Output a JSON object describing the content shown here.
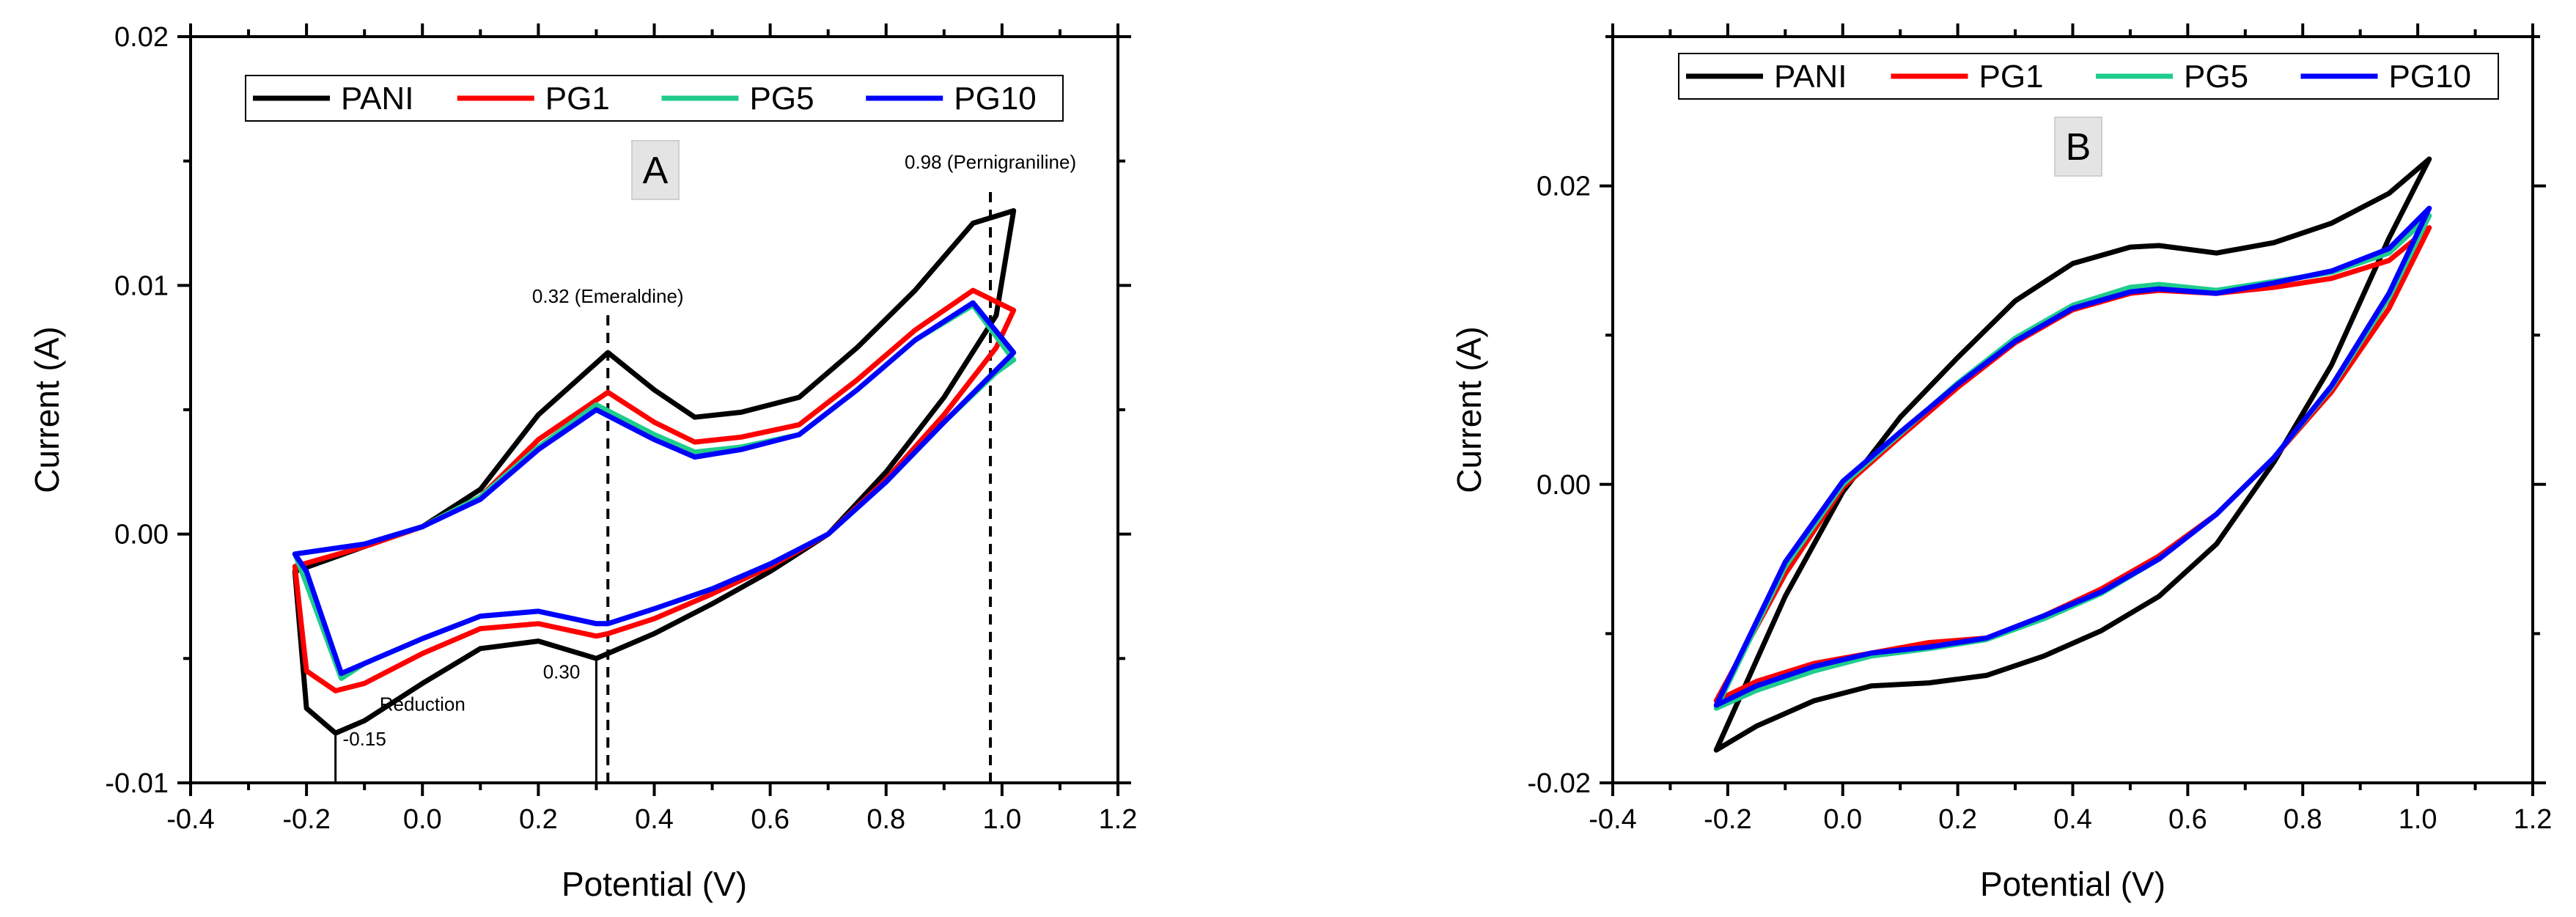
{
  "chart_data": [
    {
      "type": "line",
      "panel": "A",
      "xlabel": "Potential (V)",
      "ylabel": "Current (A)",
      "xlim": [
        -0.4,
        1.2
      ],
      "ylim": [
        -0.01,
        0.02
      ],
      "xticks": [
        "-0.4",
        "-0.2",
        "0.0",
        "0.2",
        "0.4",
        "0.6",
        "0.8",
        "1.0",
        "1.2"
      ],
      "yticks": [
        "-0.01",
        "0.00",
        "0.01",
        "0.02"
      ],
      "legend": {
        "placement": "top",
        "entries": [
          "PANI",
          "PG1",
          "PG5",
          "PG10"
        ]
      },
      "series": [
        {
          "name": "PANI",
          "color": "#000000",
          "x": [
            -0.22,
            -0.1,
            0.0,
            0.1,
            0.2,
            0.32,
            0.4,
            0.47,
            0.55,
            0.65,
            0.75,
            0.85,
            0.95,
            1.02,
            0.99,
            0.9,
            0.8,
            0.7,
            0.6,
            0.5,
            0.4,
            0.32,
            0.3,
            0.2,
            0.1,
            0.0,
            -0.1,
            -0.15,
            -0.2,
            -0.22
          ],
          "y": [
            -0.0015,
            -0.0005,
            0.0003,
            0.0018,
            0.0048,
            0.0073,
            0.0058,
            0.0047,
            0.0049,
            0.0055,
            0.0075,
            0.0098,
            0.0125,
            0.013,
            0.0088,
            0.0055,
            0.0025,
            0.0,
            -0.0015,
            -0.0028,
            -0.004,
            -0.0048,
            -0.005,
            -0.0043,
            -0.0046,
            -0.006,
            -0.0075,
            -0.008,
            -0.007,
            -0.0015
          ]
        },
        {
          "name": "PG1",
          "color": "#ff0000",
          "x": [
            -0.22,
            -0.1,
            0.0,
            0.1,
            0.2,
            0.32,
            0.4,
            0.47,
            0.55,
            0.65,
            0.75,
            0.85,
            0.95,
            1.02,
            0.99,
            0.9,
            0.8,
            0.7,
            0.6,
            0.5,
            0.4,
            0.32,
            0.3,
            0.2,
            0.1,
            0.0,
            -0.1,
            -0.15,
            -0.2,
            -0.22
          ],
          "y": [
            -0.0013,
            -0.0005,
            0.0003,
            0.0015,
            0.0038,
            0.0057,
            0.0045,
            0.0037,
            0.0039,
            0.0044,
            0.0062,
            0.0082,
            0.0098,
            0.009,
            0.0075,
            0.0048,
            0.0022,
            0.0,
            -0.0013,
            -0.0024,
            -0.0034,
            -0.004,
            -0.0041,
            -0.0036,
            -0.0038,
            -0.0048,
            -0.006,
            -0.0063,
            -0.0055,
            -0.0013
          ]
        },
        {
          "name": "PG5",
          "color": "#1fcc8c",
          "x": [
            -0.22,
            -0.1,
            0.0,
            0.1,
            0.2,
            0.3,
            0.4,
            0.47,
            0.55,
            0.65,
            0.75,
            0.85,
            0.95,
            1.02,
            0.99,
            0.9,
            0.8,
            0.7,
            0.6,
            0.5,
            0.4,
            0.32,
            0.3,
            0.2,
            0.1,
            0.0,
            -0.1,
            -0.14,
            -0.2,
            -0.22
          ],
          "y": [
            -0.0008,
            -0.0004,
            0.0003,
            0.0015,
            0.0035,
            0.0052,
            0.004,
            0.0033,
            0.0035,
            0.004,
            0.0058,
            0.0078,
            0.0092,
            0.007,
            0.0065,
            0.0045,
            0.0021,
            0.0,
            -0.0012,
            -0.0022,
            -0.003,
            -0.0036,
            -0.0036,
            -0.0031,
            -0.0033,
            -0.0042,
            -0.0052,
            -0.0058,
            -0.002,
            -0.0008
          ]
        },
        {
          "name": "PG10",
          "color": "#0000ff",
          "x": [
            -0.22,
            -0.1,
            0.0,
            0.1,
            0.2,
            0.3,
            0.4,
            0.47,
            0.55,
            0.65,
            0.75,
            0.85,
            0.95,
            1.02,
            0.99,
            0.9,
            0.8,
            0.7,
            0.6,
            0.5,
            0.4,
            0.32,
            0.3,
            0.2,
            0.1,
            0.0,
            -0.1,
            -0.14,
            -0.2,
            -0.22
          ],
          "y": [
            -0.0008,
            -0.0004,
            0.0003,
            0.0014,
            0.0034,
            0.005,
            0.0038,
            0.0031,
            0.0034,
            0.004,
            0.0058,
            0.0078,
            0.0093,
            0.0073,
            0.0066,
            0.0045,
            0.0021,
            0.0,
            -0.0012,
            -0.0022,
            -0.003,
            -0.0036,
            -0.0036,
            -0.0031,
            -0.0033,
            -0.0042,
            -0.0052,
            -0.0056,
            -0.0015,
            -0.0008
          ]
        }
      ],
      "annotations": [
        {
          "text": "0.32 (Emeraldine)",
          "x": 0.32,
          "y": 0.0093
        },
        {
          "text": "0.98 (Pernigraniline)",
          "x": 0.98,
          "y": 0.0147
        },
        {
          "text": "0.30",
          "x": 0.24,
          "y": -0.0058
        },
        {
          "text": "Reduction",
          "x": 0.0,
          "y": -0.0071
        },
        {
          "text": "-0.15",
          "x": -0.1,
          "y": -0.0085
        }
      ],
      "vlines": [
        {
          "x": 0.32,
          "style": "dashed",
          "y_top": 0.0088
        },
        {
          "x": 0.98,
          "style": "dashed",
          "y_top": 0.014
        },
        {
          "x": 0.3,
          "style": "solid",
          "y_top": -0.005
        },
        {
          "x": -0.15,
          "style": "solid",
          "y_top": -0.008
        }
      ]
    },
    {
      "type": "line",
      "panel": "B",
      "xlabel": "Potential (V)",
      "ylabel": "Current (A)",
      "xlim": [
        -0.4,
        1.2
      ],
      "ylim": [
        -0.02,
        0.03
      ],
      "xticks": [
        "-0.4",
        "-0.2",
        "0.0",
        "0.2",
        "0.4",
        "0.6",
        "0.8",
        "1.0",
        "1.2"
      ],
      "yticks": [
        "-0.02",
        "0.00",
        "0.02"
      ],
      "legend": {
        "placement": "top",
        "entries": [
          "PANI",
          "PG1",
          "PG5",
          "PG10"
        ]
      },
      "series": [
        {
          "name": "PANI",
          "color": "#000000",
          "x": [
            -0.22,
            -0.1,
            0.0,
            0.1,
            0.2,
            0.3,
            0.4,
            0.5,
            0.55,
            0.65,
            0.75,
            0.85,
            0.95,
            1.02,
            0.95,
            0.85,
            0.75,
            0.65,
            0.55,
            0.45,
            0.35,
            0.25,
            0.15,
            0.05,
            -0.05,
            -0.15,
            -0.22
          ],
          "y": [
            -0.0178,
            -0.0075,
            -0.0005,
            0.0045,
            0.0085,
            0.0123,
            0.0148,
            0.0159,
            0.016,
            0.0155,
            0.0162,
            0.0175,
            0.0195,
            0.0218,
            0.0165,
            0.008,
            0.0015,
            -0.004,
            -0.0075,
            -0.0098,
            -0.0115,
            -0.0128,
            -0.0133,
            -0.0135,
            -0.0145,
            -0.0162,
            -0.0178
          ]
        },
        {
          "name": "PG1",
          "color": "#ff0000",
          "x": [
            -0.22,
            -0.1,
            0.0,
            0.1,
            0.2,
            0.3,
            0.4,
            0.5,
            0.55,
            0.65,
            0.75,
            0.85,
            0.95,
            1.02,
            0.95,
            0.85,
            0.75,
            0.65,
            0.55,
            0.45,
            0.35,
            0.25,
            0.15,
            0.05,
            -0.05,
            -0.15,
            -0.22
          ],
          "y": [
            -0.0145,
            -0.006,
            -0.0002,
            0.0032,
            0.0065,
            0.0095,
            0.0117,
            0.0128,
            0.013,
            0.0128,
            0.0132,
            0.0138,
            0.015,
            0.0172,
            0.0118,
            0.0062,
            0.0018,
            -0.002,
            -0.0048,
            -0.007,
            -0.0088,
            -0.0103,
            -0.0106,
            -0.0113,
            -0.012,
            -0.0132,
            -0.0145
          ]
        },
        {
          "name": "PG5",
          "color": "#1fcc8c",
          "x": [
            -0.22,
            -0.1,
            0.0,
            0.1,
            0.2,
            0.3,
            0.4,
            0.5,
            0.55,
            0.65,
            0.75,
            0.85,
            0.95,
            1.02,
            0.95,
            0.85,
            0.75,
            0.65,
            0.55,
            0.45,
            0.35,
            0.25,
            0.15,
            0.05,
            -0.05,
            -0.15,
            -0.22
          ],
          "y": [
            -0.015,
            -0.0055,
            0.0,
            0.0034,
            0.0068,
            0.0098,
            0.012,
            0.0132,
            0.0134,
            0.013,
            0.0136,
            0.0142,
            0.0155,
            0.018,
            0.0125,
            0.0065,
            0.0018,
            -0.002,
            -0.005,
            -0.0073,
            -0.009,
            -0.0104,
            -0.011,
            -0.0115,
            -0.0125,
            -0.0138,
            -0.015
          ]
        },
        {
          "name": "PG10",
          "color": "#0000ff",
          "x": [
            -0.22,
            -0.1,
            0.0,
            0.1,
            0.2,
            0.3,
            0.4,
            0.5,
            0.55,
            0.65,
            0.75,
            0.85,
            0.95,
            1.02,
            0.95,
            0.85,
            0.75,
            0.65,
            0.55,
            0.45,
            0.35,
            0.25,
            0.15,
            0.05,
            -0.05,
            -0.15,
            -0.22
          ],
          "y": [
            -0.0148,
            -0.0052,
            0.0002,
            0.0035,
            0.0067,
            0.0096,
            0.0118,
            0.0129,
            0.0131,
            0.0128,
            0.0135,
            0.0143,
            0.0158,
            0.0185,
            0.0128,
            0.0066,
            0.0018,
            -0.002,
            -0.005,
            -0.0072,
            -0.0088,
            -0.0103,
            -0.0109,
            -0.0113,
            -0.0122,
            -0.0135,
            -0.0148
          ]
        }
      ],
      "annotations": []
    }
  ]
}
